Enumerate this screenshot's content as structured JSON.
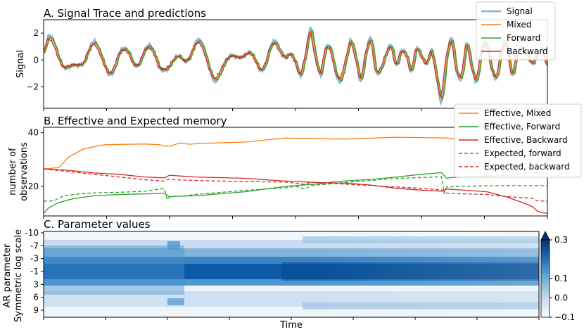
{
  "chart_data": [
    {
      "type": "line",
      "title": "A. Signal Trace and predictions",
      "xlabel": "",
      "ylabel": "Signal",
      "x_range": [
        0,
        100
      ],
      "ylim": [
        -3.6,
        3.0
      ],
      "yticks": [
        {
          "v": 2,
          "label": "2"
        },
        {
          "v": 0,
          "label": "0"
        },
        {
          "v": -2,
          "label": "−2"
        }
      ],
      "legend_position": "top-right",
      "colors": {
        "Signal": "#7fb2d5",
        "Mixed": "#ff7f0e",
        "Forward": "#2ca02c",
        "Backward": "#d62728"
      },
      "series_names": [
        "Signal",
        "Mixed",
        "Forward",
        "Backward"
      ],
      "signal_keypoints": [
        [
          0,
          0.6
        ],
        [
          1,
          1.8
        ],
        [
          2,
          1.4
        ],
        [
          3,
          0.2
        ],
        [
          4,
          -0.6
        ],
        [
          5,
          -0.5
        ],
        [
          6,
          -0.4
        ],
        [
          7,
          -0.4
        ],
        [
          8,
          -0.2
        ],
        [
          9,
          0.8
        ],
        [
          10,
          1.4
        ],
        [
          11,
          0.8
        ],
        [
          12,
          -0.3
        ],
        [
          13,
          -1.1
        ],
        [
          14,
          -0.7
        ],
        [
          15,
          0.5
        ],
        [
          16,
          0.9
        ],
        [
          17,
          0.5
        ],
        [
          18,
          -0.4
        ],
        [
          19,
          -0.3
        ],
        [
          20,
          0.7
        ],
        [
          21,
          1.1
        ],
        [
          22,
          0.5
        ],
        [
          23,
          -0.6
        ],
        [
          24,
          -0.8
        ],
        [
          25,
          -0.5
        ],
        [
          26,
          0.1
        ],
        [
          27,
          0.3
        ],
        [
          28,
          -0.1
        ],
        [
          29,
          0.2
        ],
        [
          30,
          1.2
        ],
        [
          31,
          1.5
        ],
        [
          32,
          0.6
        ],
        [
          33,
          -0.8
        ],
        [
          34,
          -1.6
        ],
        [
          35,
          -1.1
        ],
        [
          36,
          -0.2
        ],
        [
          37,
          0.3
        ],
        [
          38,
          0.3
        ],
        [
          39,
          0.2
        ],
        [
          40,
          0.4
        ],
        [
          41,
          0.6
        ],
        [
          42,
          0.0
        ],
        [
          43,
          -0.8
        ],
        [
          44,
          -0.4
        ],
        [
          45,
          1.0
        ],
        [
          46,
          1.4
        ],
        [
          47,
          0.7
        ],
        [
          48,
          0.2
        ],
        [
          49,
          0.5
        ],
        [
          50,
          -0.2
        ],
        [
          51,
          -1.2
        ],
        [
          52,
          0.4
        ],
        [
          53,
          2.4
        ],
        [
          54,
          0.2
        ],
        [
          55,
          -1.1
        ],
        [
          56,
          0.9
        ],
        [
          57,
          0.8
        ],
        [
          58,
          -1.0
        ],
        [
          59,
          -1.6
        ],
        [
          60,
          0.0
        ],
        [
          61,
          1.5
        ],
        [
          62,
          0.1
        ],
        [
          63,
          -1.6
        ],
        [
          64,
          0.6
        ],
        [
          65,
          1.6
        ],
        [
          66,
          -0.9
        ],
        [
          67,
          -0.7
        ],
        [
          68,
          0.5
        ],
        [
          69,
          1.1
        ],
        [
          70,
          -0.4
        ],
        [
          71,
          0.7
        ],
        [
          72,
          0.4
        ],
        [
          73,
          -0.9
        ],
        [
          74,
          0.9
        ],
        [
          75,
          0.3
        ],
        [
          76,
          -0.3
        ],
        [
          77,
          0.7
        ],
        [
          78,
          -1.3
        ],
        [
          79,
          -3.1
        ],
        [
          80,
          0.2
        ],
        [
          81,
          1.6
        ],
        [
          82,
          -0.9
        ],
        [
          83,
          -1.3
        ],
        [
          84,
          1.3
        ],
        [
          85,
          -0.6
        ],
        [
          86,
          -1.6
        ],
        [
          87,
          0.9
        ],
        [
          88,
          1.2
        ],
        [
          89,
          -0.8
        ],
        [
          90,
          -1.3
        ],
        [
          91,
          1.0
        ],
        [
          92,
          1.1
        ],
        [
          93,
          -1.2
        ],
        [
          94,
          0.4
        ],
        [
          95,
          1.0
        ],
        [
          96,
          0.5
        ],
        [
          97,
          -0.3
        ],
        [
          98,
          0.4
        ],
        [
          99,
          0.9
        ],
        [
          100,
          -0.5
        ]
      ]
    },
    {
      "type": "line",
      "title": "B. Effective and Expected memory",
      "xlabel": "",
      "ylabel": [
        "number of",
        "observations"
      ],
      "x_range": [
        0,
        100
      ],
      "ylim": [
        9,
        42
      ],
      "yticks": [
        {
          "v": 40,
          "label": "40"
        },
        {
          "v": 20,
          "label": "20"
        }
      ],
      "legend_position": "top-right",
      "series": [
        {
          "name": "Effective, Mixed",
          "color": "#ff7f0e",
          "dash": false,
          "points": [
            [
              0,
              26.5
            ],
            [
              3,
              27
            ],
            [
              5,
              31
            ],
            [
              8,
              34
            ],
            [
              12,
              35.5
            ],
            [
              20,
              35.8
            ],
            [
              23,
              35.5
            ],
            [
              24,
              35
            ],
            [
              25,
              35
            ],
            [
              26,
              35.5
            ],
            [
              27,
              36.2
            ],
            [
              29,
              35.7
            ],
            [
              31,
              36
            ],
            [
              40,
              36.5
            ],
            [
              48,
              38
            ],
            [
              60,
              37.6
            ],
            [
              70,
              38.3
            ],
            [
              77,
              38.1
            ],
            [
              80,
              38
            ],
            [
              82,
              37.5
            ],
            [
              83,
              38.2
            ],
            [
              85,
              37.8
            ],
            [
              90,
              37.9
            ],
            [
              100,
              38
            ]
          ]
        },
        {
          "name": "Effective, Forward",
          "color": "#2ca02c",
          "dash": false,
          "points": [
            [
              0,
              10
            ],
            [
              1,
              12
            ],
            [
              3,
              14
            ],
            [
              6,
              15.5
            ],
            [
              10,
              16.5
            ],
            [
              15,
              17
            ],
            [
              20,
              17.2
            ],
            [
              24,
              17.4
            ],
            [
              25,
              16.1
            ],
            [
              26,
              16.3
            ],
            [
              30,
              16.5
            ],
            [
              40,
              18
            ],
            [
              48,
              20
            ],
            [
              55,
              21
            ],
            [
              58,
              21.8
            ],
            [
              65,
              22.6
            ],
            [
              70,
              23.5
            ],
            [
              75,
              24.5
            ],
            [
              79,
              25.1
            ],
            [
              80,
              23
            ],
            [
              81,
              23.3
            ],
            [
              87,
              23.8
            ],
            [
              93,
              24.3
            ],
            [
              97,
              25.1
            ],
            [
              100,
              25.2
            ]
          ]
        },
        {
          "name": "Effective, Backward",
          "color": "#d62728",
          "dash": false,
          "points": [
            [
              0,
              26.5
            ],
            [
              5,
              26
            ],
            [
              10,
              25
            ],
            [
              15,
              24.5
            ],
            [
              20,
              23.5
            ],
            [
              24,
              23.2
            ],
            [
              25,
              24.2
            ],
            [
              26,
              24
            ],
            [
              30,
              23.5
            ],
            [
              40,
              23
            ],
            [
              48,
              22
            ],
            [
              55,
              21.4
            ],
            [
              60,
              21.2
            ],
            [
              65,
              20.5
            ],
            [
              70,
              19.3
            ],
            [
              75,
              18.6
            ],
            [
              79,
              18.2
            ],
            [
              80,
              19
            ],
            [
              82,
              18.8
            ],
            [
              88,
              18
            ],
            [
              92,
              16
            ],
            [
              95,
              14
            ],
            [
              97,
              12.5
            ],
            [
              98,
              10.8
            ],
            [
              99,
              10.2
            ],
            [
              100,
              10
            ]
          ]
        },
        {
          "name": "Expected, forward",
          "color": "#2ca02c",
          "dash": true,
          "points": [
            [
              0,
              14.5
            ],
            [
              2,
              14.6
            ],
            [
              4,
              16.5
            ],
            [
              6,
              17
            ],
            [
              8,
              17.3
            ],
            [
              10,
              17.6
            ],
            [
              15,
              17.8
            ],
            [
              20,
              18.2
            ],
            [
              23,
              19
            ],
            [
              24,
              19.2
            ],
            [
              24.5,
              15
            ],
            [
              25,
              16.2
            ],
            [
              28,
              16.5
            ],
            [
              30,
              17
            ],
            [
              40,
              18.5
            ],
            [
              48,
              19.5
            ],
            [
              50,
              20
            ],
            [
              52,
              19
            ],
            [
              53,
              20.3
            ],
            [
              60,
              21.5
            ],
            [
              65,
              22.2
            ],
            [
              70,
              23
            ],
            [
              75,
              23.3
            ],
            [
              79,
              23.6
            ],
            [
              79.5,
              17.5
            ],
            [
              80,
              19.8
            ],
            [
              83,
              20
            ],
            [
              87,
              20.2
            ],
            [
              93,
              20.3
            ],
            [
              100,
              20.3
            ]
          ]
        },
        {
          "name": "Expected, backward",
          "color": "#d62728",
          "dash": true,
          "points": [
            [
              0,
              26.5
            ],
            [
              5,
              25.5
            ],
            [
              10,
              24.5
            ],
            [
              15,
              23.5
            ],
            [
              20,
              22.5
            ],
            [
              24,
              22
            ],
            [
              25,
              22.8
            ],
            [
              26,
              22.5
            ],
            [
              30,
              22.2
            ],
            [
              40,
              21.8
            ],
            [
              48,
              21.6
            ],
            [
              50,
              21.2
            ],
            [
              52,
              20.7
            ],
            [
              53,
              21.6
            ],
            [
              60,
              20.8
            ],
            [
              65,
              20.3
            ],
            [
              70,
              19.8
            ],
            [
              75,
              19.3
            ],
            [
              79,
              18.7
            ],
            [
              80,
              17.5
            ],
            [
              82,
              17.3
            ],
            [
              88,
              17
            ],
            [
              92,
              16.2
            ],
            [
              95,
              15.8
            ],
            [
              97,
              15.6
            ],
            [
              98,
              14.6
            ],
            [
              100,
              14.5
            ]
          ]
        }
      ]
    },
    {
      "type": "heatmap",
      "title": "C. Parameter values",
      "xlabel": "Time",
      "ylabel": [
        "AR parameter",
        "Symmetric log scale"
      ],
      "yticks": [
        "-10",
        "-7",
        "-3",
        "-1",
        "3",
        "6",
        "9"
      ],
      "colorbar": {
        "min": -0.1,
        "max": 0.3,
        "ticks": [
          "0.3",
          "0.1",
          "0.0",
          "−0.1"
        ],
        "cmap": "Blues",
        "extend": "max"
      }
    }
  ]
}
